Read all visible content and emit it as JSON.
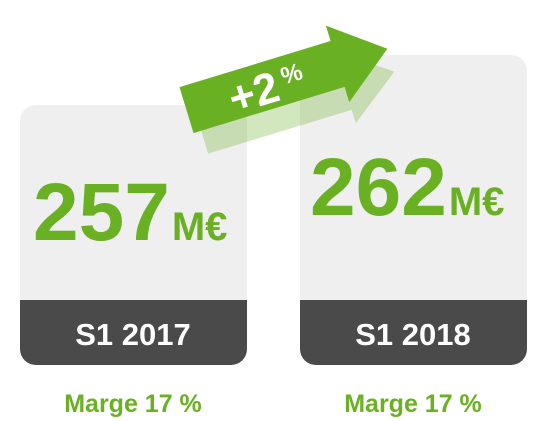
{
  "cards": [
    {
      "value": "257",
      "unit": "M€",
      "period": "S1 2017",
      "margin": "Marge 17 %"
    },
    {
      "value": "262",
      "unit": "M€",
      "period": "S1 2018",
      "margin": "Marge 17 %"
    }
  ],
  "growth": {
    "amount": "+2",
    "unit": "%"
  }
}
